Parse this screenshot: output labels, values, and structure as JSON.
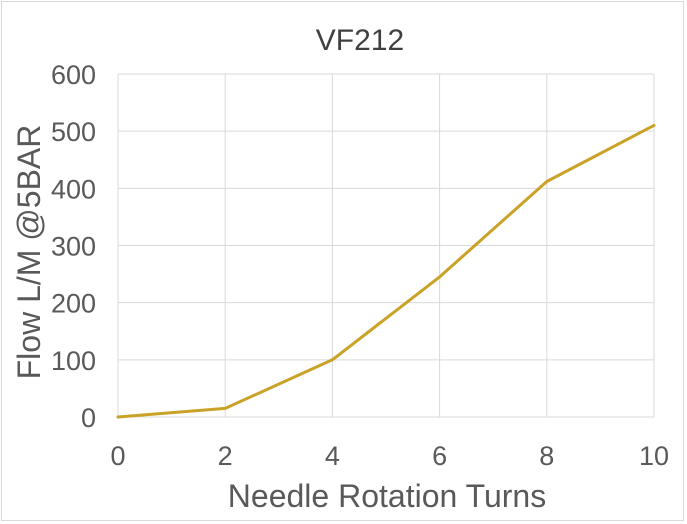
{
  "chart_data": {
    "type": "line",
    "title": "VF212",
    "xlabel": "Needle Rotation Turns",
    "ylabel": "Flow  L/M @5BAR",
    "xlim": [
      0,
      10
    ],
    "ylim": [
      0,
      600
    ],
    "xticks": [
      0,
      2,
      4,
      6,
      8,
      10
    ],
    "yticks": [
      0,
      100,
      200,
      300,
      400,
      500,
      600
    ],
    "grid": true,
    "legend": "none",
    "series": [
      {
        "color": "#c9a227",
        "x": [
          0,
          2,
          4,
          6,
          8,
          10
        ],
        "y": [
          0,
          15,
          100,
          245,
          412,
          510
        ]
      }
    ]
  }
}
